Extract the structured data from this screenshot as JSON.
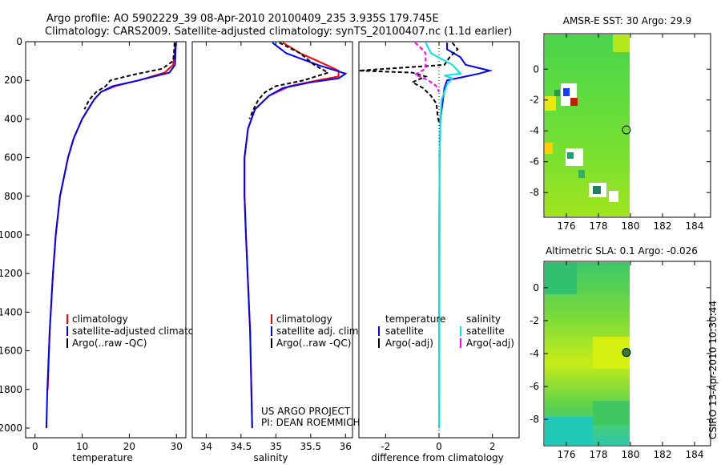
{
  "header": {
    "line1": "Argo profile: AO 5902229_39 08-Apr-2010 20100409_235 3.935S 179.745E",
    "line2": "Climatology: CARS2009. Satellite-adjusted climatology: synTS_20100407.nc (1.1d earlier)"
  },
  "colors": {
    "climatology": "#ff0000",
    "satellite": "#0000ff",
    "argo": "#000000",
    "satellite_diff": "#00e5e5",
    "argo_adj": "#ff00ff"
  },
  "credit": {
    "line1": "US ARGO PROJECT",
    "line2": "PI: DEAN ROEMMICH"
  },
  "timestamp": "CSIRO 13-Apr-2010 10:30:44",
  "chart_data": [
    {
      "id": "temperature",
      "type": "line",
      "xlabel": "temperature",
      "ylabel": "",
      "xlim": [
        -2,
        32
      ],
      "ylim": [
        2050,
        0
      ],
      "xticks": [
        0,
        10,
        20,
        30
      ],
      "yticks": [
        0,
        200,
        400,
        600,
        800,
        1000,
        1200,
        1400,
        1600,
        1800,
        2000
      ],
      "legend": [
        "climatology",
        "satellite-adjusted climatology",
        "Argo(..raw -QC)"
      ],
      "series": [
        {
          "name": "climatology",
          "color": "#ff0000",
          "dash": "",
          "depth": [
            5,
            60,
            120,
            160,
            200,
            230,
            260,
            300,
            400,
            500,
            600,
            800,
            1000,
            1200,
            1500,
            1800
          ],
          "value": [
            29.8,
            29.6,
            29.3,
            27.5,
            22,
            17,
            14,
            12.5,
            10,
            8.2,
            7,
            5.3,
            4.4,
            3.8,
            3.1,
            2.7
          ]
        },
        {
          "name": "satellite-adjusted climatology",
          "color": "#0000ff",
          "dash": "",
          "depth": [
            5,
            60,
            120,
            160,
            200,
            230,
            260,
            300,
            400,
            500,
            600,
            800,
            1000,
            1200,
            1500,
            1800,
            2000
          ],
          "value": [
            29.9,
            29.8,
            29.7,
            28.5,
            22,
            16.5,
            14,
            12.5,
            10,
            8.2,
            7,
            5.3,
            4.4,
            3.8,
            3.1,
            2.6,
            2.4
          ]
        },
        {
          "name": "Argo(..raw -QC)",
          "color": "#000000",
          "dash": "5,3",
          "depth": [
            5,
            50,
            100,
            140,
            170,
            200,
            230,
            260,
            300,
            350
          ],
          "value": [
            29.6,
            29.5,
            29.3,
            27,
            21,
            16,
            15,
            13,
            11.5,
            10.5
          ]
        }
      ]
    },
    {
      "id": "salinity",
      "type": "line",
      "xlabel": "salinity",
      "ylabel": "",
      "xlim": [
        33.8,
        36.1
      ],
      "ylim": [
        2050,
        0
      ],
      "xticks": [
        34,
        34.5,
        35,
        35.5,
        36
      ],
      "yticks": [],
      "legend": [
        "climatology",
        "satellite adj. clim.",
        "Argo(..raw -QC)"
      ],
      "series": [
        {
          "name": "climatology",
          "color": "#ff0000",
          "dash": "",
          "depth": [
            5,
            60,
            100,
            150,
            180,
            200,
            230,
            280,
            350,
            450,
            600,
            800,
            1000,
            1500,
            2000
          ],
          "value": [
            35.1,
            35.35,
            35.6,
            35.9,
            35.9,
            35.6,
            35.2,
            34.9,
            34.7,
            34.6,
            34.55,
            34.55,
            34.57,
            34.63,
            34.66
          ]
        },
        {
          "name": "satellite adj. clim.",
          "color": "#0000ff",
          "dash": "",
          "depth": [
            5,
            60,
            120,
            165,
            190,
            210,
            240,
            280,
            350,
            450,
            600,
            800,
            1000,
            1500,
            2000
          ],
          "value": [
            34.95,
            35.15,
            35.6,
            36,
            35.9,
            35.5,
            35.1,
            34.9,
            34.7,
            34.6,
            34.55,
            34.55,
            34.57,
            34.63,
            34.66
          ]
        },
        {
          "name": "Argo(..raw -QC)",
          "color": "#000000",
          "dash": "5,3",
          "depth": [
            5,
            60,
            120,
            160,
            200,
            230,
            260,
            300,
            350,
            400
          ],
          "value": [
            35.05,
            35.35,
            35.55,
            35.75,
            35.4,
            35.0,
            34.85,
            34.75,
            34.68,
            34.62
          ]
        }
      ]
    },
    {
      "id": "difference",
      "type": "line",
      "xlabel": "difference from climatology",
      "ylabel": "",
      "xlim": [
        -3,
        3
      ],
      "ylim": [
        2050,
        0
      ],
      "xticks": [
        -2,
        0,
        2
      ],
      "yticks": [],
      "legend_groups": [
        {
          "header": "temperature",
          "entries": [
            "satellite",
            "Argo(-adj)"
          ]
        },
        {
          "header": "salinity",
          "entries": [
            "satellite",
            "Argo(-adj)"
          ]
        }
      ],
      "series": [
        {
          "name": "temperature satellite",
          "color": "#0000ff",
          "dash": "",
          "depth": [
            5,
            40,
            80,
            120,
            150,
            165,
            180,
            200,
            240,
            300,
            400,
            600,
            1000,
            2000
          ],
          "value": [
            0.3,
            0.3,
            0.8,
            1.0,
            1.9,
            1.5,
            1.0,
            0.3,
            0.2,
            0.15,
            0.05,
            0.02,
            0.01,
            0.0
          ]
        },
        {
          "name": "temperature Argo(-adj)",
          "color": "#000000",
          "dash": "5,3",
          "depth": [
            5,
            40,
            80,
            120,
            150,
            160,
            180,
            210,
            240,
            280,
            320,
            380,
            420
          ],
          "value": [
            0.5,
            0.7,
            0.4,
            0.2,
            -3,
            -1,
            -0.5,
            -1,
            -0.6,
            -0.3,
            -0.1,
            -0.05,
            0
          ]
        },
        {
          "name": "salinity satellite",
          "color": "#00e5e5",
          "dash": "",
          "depth": [
            5,
            60,
            120,
            165,
            175,
            190,
            220,
            300,
            400,
            600,
            1000,
            2000
          ],
          "value": [
            -0.5,
            -0.3,
            0.5,
            0.8,
            0.2,
            0.5,
            0.3,
            0.1,
            0.05,
            0.02,
            0,
            0
          ]
        },
        {
          "name": "salinity Argo(-adj)",
          "color": "#ff00ff",
          "dash": "5,3",
          "depth": [
            5,
            30,
            60,
            100,
            140,
            170,
            200,
            230,
            260
          ],
          "value": [
            -0.9,
            -0.7,
            -0.5,
            -0.5,
            -0.5,
            -0.9,
            -0.4,
            -0.1,
            0
          ]
        }
      ]
    }
  ],
  "maps": [
    {
      "id": "sst",
      "title": "AMSR-E SST: 30 Argo: 29.9",
      "xlim": [
        174.6,
        185
      ],
      "ylim": [
        -9.6,
        2.3
      ],
      "xticks": [
        176,
        178,
        180,
        182,
        184
      ],
      "yticks": [
        0,
        -2,
        -4,
        -6,
        -8
      ],
      "data_lon_max": 180,
      "marker": {
        "lon": 179.745,
        "lat": -3.935
      }
    },
    {
      "id": "sla",
      "title": "Altimetric SLA: 0.1 Argo: -0.026",
      "xlim": [
        174.6,
        185
      ],
      "ylim": [
        -9.6,
        1.6
      ],
      "xticks": [
        176,
        178,
        180,
        182,
        184
      ],
      "yticks": [
        0,
        -2,
        -4,
        -6,
        -8
      ],
      "data_lon_max": 180,
      "marker": {
        "lon": 179.745,
        "lat": -3.935
      }
    }
  ]
}
